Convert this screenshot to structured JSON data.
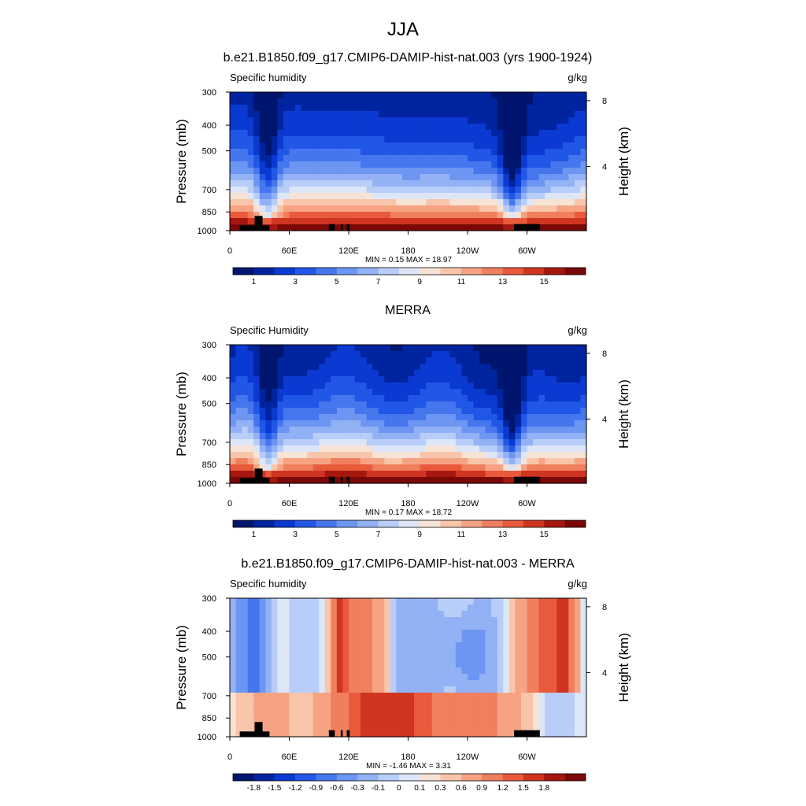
{
  "figure": {
    "title": "JJA"
  },
  "common": {
    "x_ticks": [
      "0",
      "60E",
      "120E",
      "180",
      "120W",
      "60W"
    ],
    "x_tick_values": [
      0,
      60,
      120,
      180,
      240,
      300
    ],
    "x_range": [
      0,
      360
    ],
    "p_ticks": [
      300,
      400,
      500,
      700,
      850,
      1000
    ],
    "p_range": [
      1000,
      300
    ],
    "y_label": "Pressure (mb)",
    "h_ticks": [
      8,
      4
    ],
    "h_label": "Height (km)",
    "var_label": "Specific humidity",
    "units": "g/kg"
  },
  "chart_data": [
    {
      "type": "heatmap",
      "title": "b.e21.B1850.f09_g17.CMIP6-DAMIP-hist-nat.003 (yrs 1900-1924)",
      "left_label": "Specific humidity",
      "right_label": "g/kg",
      "stats": "MIN =   0.15  MAX =  18.97",
      "colorbar_labels": [
        "1",
        "3",
        "5",
        "7",
        "9",
        "11",
        "13",
        "15"
      ],
      "colorbar_label_slots": [
        1,
        3,
        5,
        7,
        9,
        11,
        13,
        15
      ],
      "colorbar_bins": 16,
      "colors": [
        "#00156e",
        "#0024a0",
        "#0a3ad1",
        "#2157e6",
        "#4676ee",
        "#6d95f2",
        "#93b1f5",
        "#b8cdf8",
        "#dde6f7",
        "#f7e3d5",
        "#f8c5ab",
        "#f6a384",
        "#f07f5e",
        "#e85a3b",
        "#cf3521",
        "#a5170f",
        "#7a0806"
      ],
      "data_min": 0.15,
      "data_max": 18.97
    },
    {
      "type": "heatmap",
      "title": "MERRA",
      "left_label": "Specific Humidity",
      "right_label": "g/kg",
      "stats": "MIN =   0.17  MAX =  18.72",
      "colorbar_labels": [
        "1",
        "3",
        "5",
        "7",
        "9",
        "11",
        "13",
        "15"
      ],
      "colorbar_label_slots": [
        1,
        3,
        5,
        7,
        9,
        11,
        13,
        15
      ],
      "colorbar_bins": 16,
      "colors": [
        "#00156e",
        "#0024a0",
        "#0a3ad1",
        "#2157e6",
        "#4676ee",
        "#6d95f2",
        "#93b1f5",
        "#b8cdf8",
        "#dde6f7",
        "#f7e3d5",
        "#f8c5ab",
        "#f6a384",
        "#f07f5e",
        "#e85a3b",
        "#cf3521",
        "#a5170f",
        "#7a0806"
      ],
      "data_min": 0.17,
      "data_max": 18.72
    },
    {
      "type": "heatmap",
      "title": "b.e21.B1850.f09_g17.CMIP6-DAMIP-hist-nat.003 - MERRA",
      "left_label": "Specific humidity",
      "right_label": "g/kg",
      "stats": "MIN =  -1.46  MAX =   3.31",
      "colorbar_labels": [
        "-1.8",
        "-1.5",
        "-1.2",
        "-0.9",
        "-0.6",
        "-0.3",
        "-0.1",
        "0",
        "0.1",
        "0.3",
        "0.6",
        "0.9",
        "1.2",
        "1.5",
        "1.8"
      ],
      "colorbar_label_slots": [
        1,
        2,
        3,
        4,
        5,
        6,
        7,
        8,
        9,
        10,
        11,
        12,
        13,
        14,
        15
      ],
      "colorbar_bins": 16,
      "colors": [
        "#00156e",
        "#0024a0",
        "#0a3ad1",
        "#2157e6",
        "#4676ee",
        "#6d95f2",
        "#93b1f5",
        "#b8cdf8",
        "#dde6f7",
        "#f7e3d5",
        "#f8c5ab",
        "#f6a384",
        "#f07f5e",
        "#e85a3b",
        "#cf3521",
        "#a5170f",
        "#7a0806"
      ],
      "data_min": -1.46,
      "data_max": 3.31
    }
  ]
}
